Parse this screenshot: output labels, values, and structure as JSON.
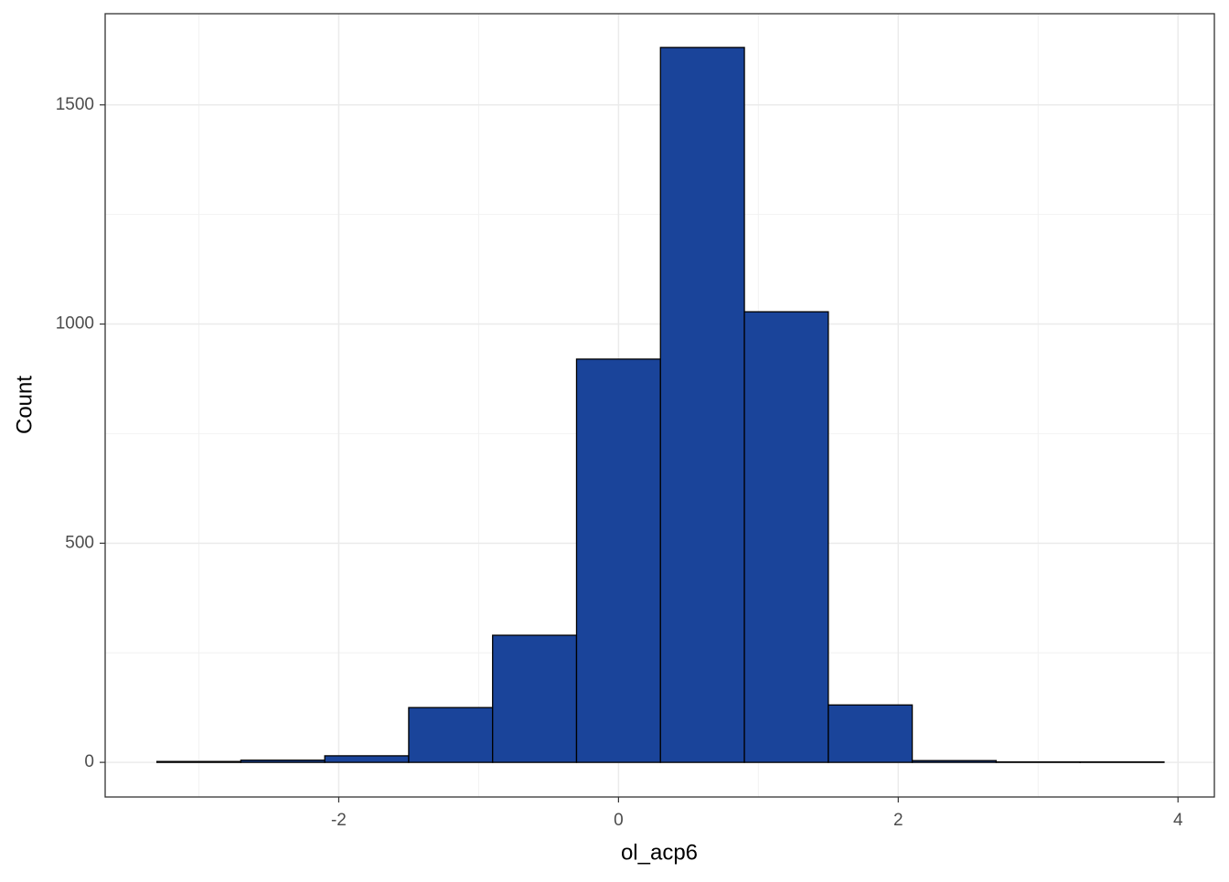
{
  "chart_data": {
    "type": "histogram",
    "x_label": "ol_acp6",
    "y_label": "Count",
    "bins": [
      -3.3,
      -2.7,
      -2.1,
      -1.5,
      -0.9,
      -0.3,
      0.3,
      0.9,
      1.5,
      2.1,
      2.7,
      3.3,
      3.9
    ],
    "values": [
      2,
      5,
      15,
      125,
      290,
      920,
      1631,
      1028,
      131,
      4,
      1,
      1
    ],
    "color": "#1a449a",
    "edge_color": "#000000",
    "xlim": [
      -3.67,
      4.26
    ],
    "xticks": [
      -2,
      0,
      2,
      4
    ],
    "ylim": [
      -79,
      1708
    ],
    "yticks": [
      0,
      500,
      1000,
      1500
    ],
    "grid": true
  }
}
